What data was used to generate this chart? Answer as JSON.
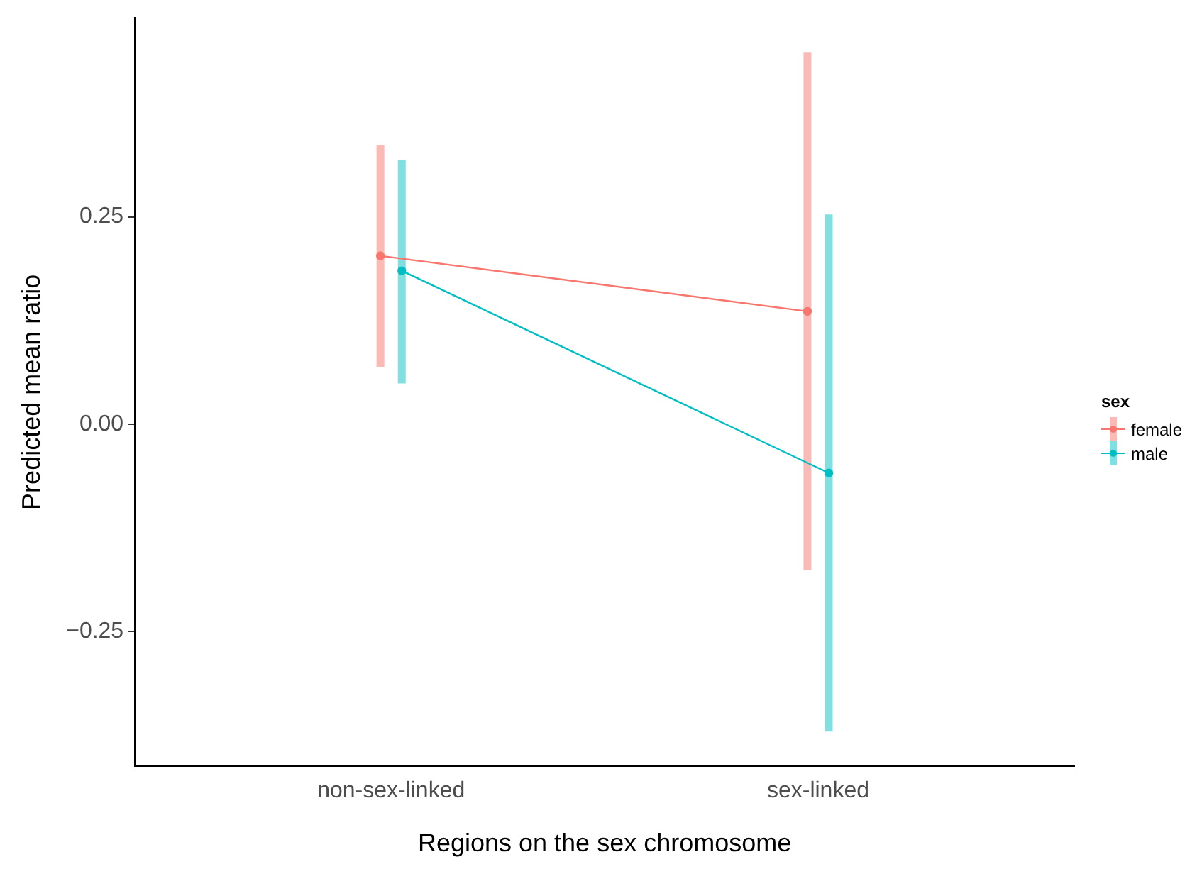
{
  "chart_data": {
    "type": "line",
    "xlabel": "Regions on the sex chromosome",
    "ylabel": "Predicted mean ratio",
    "legend_title": "sex",
    "categories": [
      "non-sex-linked",
      "sex-linked"
    ],
    "series": [
      {
        "name": "female",
        "color": "#f8766d",
        "values": [
          0.203,
          0.136
        ],
        "errors": [
          [
            0.069,
            0.337
          ],
          [
            -0.176,
            0.448
          ]
        ]
      },
      {
        "name": "male",
        "color": "#00bfc4",
        "values": [
          0.185,
          -0.059
        ],
        "errors": [
          [
            0.049,
            0.319
          ],
          [
            -0.371,
            0.253
          ]
        ]
      }
    ],
    "ylim": [
      -0.413,
      0.49
    ],
    "yticks": [
      {
        "value": -0.25,
        "label": "−0.25"
      },
      {
        "value": 0,
        "label": "0.00"
      },
      {
        "value": 0.25,
        "label": "0.25"
      }
    ],
    "grid": false,
    "legend": "right",
    "marker": "circle",
    "line_style": "solid"
  }
}
